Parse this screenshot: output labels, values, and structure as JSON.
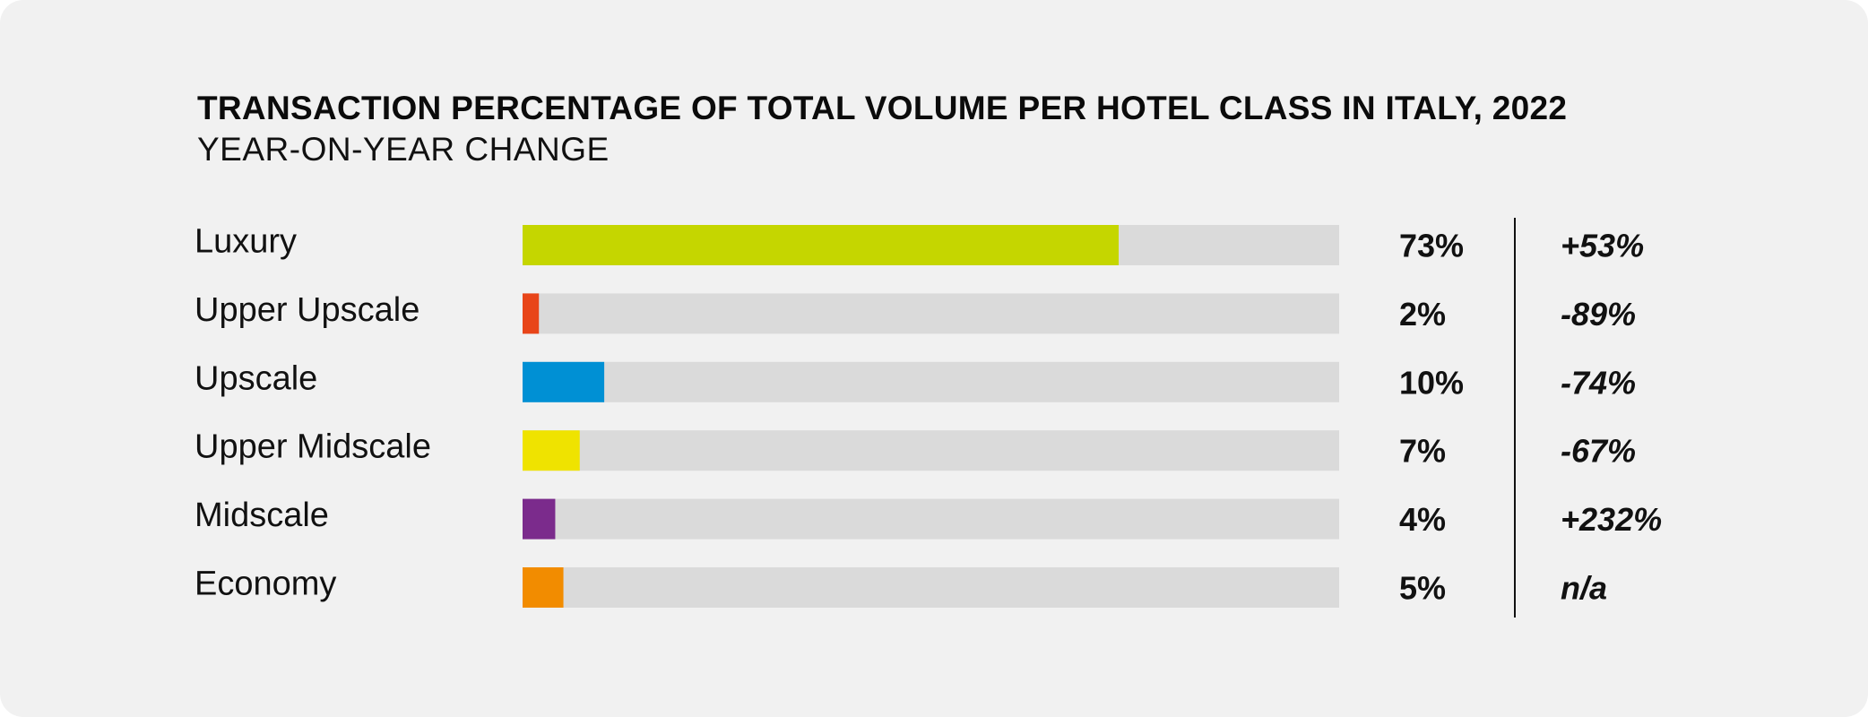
{
  "chart_data": {
    "type": "bar",
    "orientation": "horizontal",
    "title": "TRANSACTION PERCENTAGE OF TOTAL VOLUME PER HOTEL CLASS IN ITALY, 2022",
    "subtitle": "YEAR-ON-YEAR CHANGE",
    "xlim": [
      0,
      100
    ],
    "grid": false,
    "legend": "none",
    "categories": [
      "Luxury",
      "Upper Upscale",
      "Upscale",
      "Upper Midscale",
      "Midscale",
      "Economy"
    ],
    "values": [
      73,
      2,
      10,
      7,
      4,
      5
    ],
    "value_labels": [
      "73%",
      "2%",
      "10%",
      "7%",
      "4%",
      "5%"
    ],
    "yoy_change": [
      "+53%",
      "-89%",
      "-74%",
      "-67%",
      "+232%",
      "n/a"
    ],
    "colors": [
      "#c5d600",
      "#e84519",
      "#0090d4",
      "#efe300",
      "#7b2b8c",
      "#f28c00"
    ],
    "track_color": "#dadada",
    "background_color": "#f1f1f1"
  }
}
